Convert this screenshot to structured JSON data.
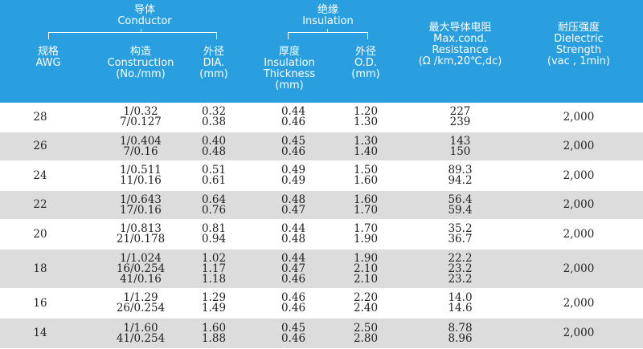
{
  "header": {
    "conductor_group_cn": "导体",
    "conductor_group_en": "Conductor",
    "insulation_group_cn": "绝缘",
    "insulation_group_en": "Insulation",
    "awg_cn": "规格",
    "awg_en": "AWG",
    "construction_cn": "构造",
    "construction_en": "Construction",
    "construction_unit": "(No./mm)",
    "dia_cn": "外径",
    "dia_en": "DIA.",
    "dia_unit": "(mm)",
    "thick_cn": "厚度",
    "thick_en1": "Insulation",
    "thick_en2": "Thickness",
    "thick_unit": "(mm)",
    "od_cn": "外径",
    "od_en": "O.D.",
    "od_unit": "(mm)",
    "res_cn": "最大导体电阻",
    "res_en1": "Max.cond.",
    "res_en2": "Resistance",
    "res_unit": "(Ω /km,20℃,dc)",
    "vol_cn": "耐压强度",
    "vol_en1": "Dielectric",
    "vol_en2": "Strength",
    "vol_unit": "(vac , 1min)"
  },
  "rows": [
    {
      "awg": "28",
      "construction": [
        "1/0.32",
        "7/0.127"
      ],
      "dia": [
        "0.32",
        "0.38"
      ],
      "thickness": [
        "0.44",
        "0.46"
      ],
      "od": [
        "1.20",
        "1.30"
      ],
      "resistance": [
        "227",
        "239"
      ],
      "voltage": "2,000"
    },
    {
      "awg": "26",
      "construction": [
        "1/0.404",
        "7/0.16"
      ],
      "dia": [
        "0.40",
        "0.48"
      ],
      "thickness": [
        "0.45",
        "0.46"
      ],
      "od": [
        "1.30",
        "1.40"
      ],
      "resistance": [
        "143",
        "150"
      ],
      "voltage": "2,000"
    },
    {
      "awg": "24",
      "construction": [
        "1/0.511",
        "11/0.16"
      ],
      "dia": [
        "0.51",
        "0.61"
      ],
      "thickness": [
        "0.49",
        "0.49"
      ],
      "od": [
        "1.50",
        "1.60"
      ],
      "resistance": [
        "89.3",
        "94.2"
      ],
      "voltage": "2,000"
    },
    {
      "awg": "22",
      "construction": [
        "1/0.643",
        "17/0.16"
      ],
      "dia": [
        "0.64",
        "0.76"
      ],
      "thickness": [
        "0.48",
        "0.47"
      ],
      "od": [
        "1.60",
        "1.70"
      ],
      "resistance": [
        "56.4",
        "59.4"
      ],
      "voltage": "2,000"
    },
    {
      "awg": "20",
      "construction": [
        "1/0.813",
        "21/0.178"
      ],
      "dia": [
        "0.81",
        "0.94"
      ],
      "thickness": [
        "0.44",
        "0.48"
      ],
      "od": [
        "1.70",
        "1.90"
      ],
      "resistance": [
        "35.2",
        "36.7"
      ],
      "voltage": "2,000"
    },
    {
      "awg": "18",
      "construction": [
        "1/1.024",
        "16/0.254",
        "41/0.16"
      ],
      "dia": [
        "1.02",
        "1.17",
        "1.18"
      ],
      "thickness": [
        "0.44",
        "0.47",
        "0.46"
      ],
      "od": [
        "1.90",
        "2.10",
        "2.10"
      ],
      "resistance": [
        "22.2",
        "23.2",
        "23.2"
      ],
      "voltage": "2,000"
    },
    {
      "awg": "16",
      "construction": [
        "1/1.29",
        "26/0.254"
      ],
      "dia": [
        "1.29",
        "1.49"
      ],
      "thickness": [
        "0.46",
        "0.46"
      ],
      "od": [
        "2.20",
        "2.40"
      ],
      "resistance": [
        "14.0",
        "14.6"
      ],
      "voltage": "2,000"
    },
    {
      "awg": "14",
      "construction": [
        "1/1.60",
        "41/0.254"
      ],
      "dia": [
        "1.60",
        "1.88"
      ],
      "thickness": [
        "0.45",
        "0.46"
      ],
      "od": [
        "2.50",
        "2.80"
      ],
      "resistance": [
        "8.78",
        "8.96"
      ],
      "voltage": "2,000"
    }
  ]
}
